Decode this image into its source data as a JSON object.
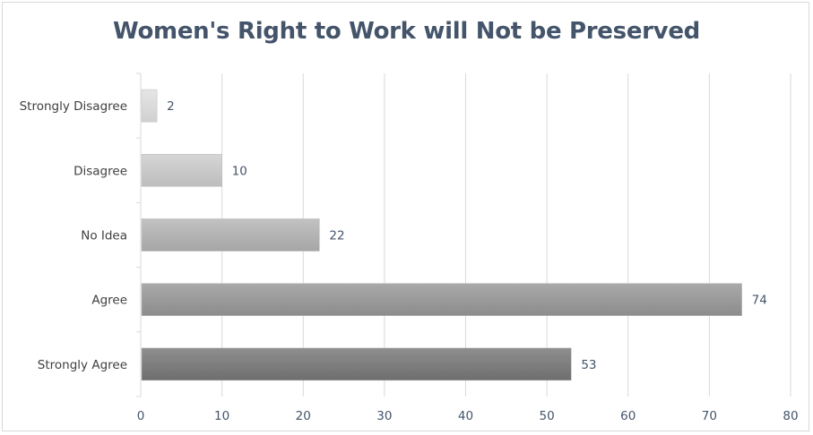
{
  "chart_data": {
    "type": "bar",
    "orientation": "horizontal",
    "title": "Women's Right to Work will Not be Preserved",
    "xlabel": "",
    "ylabel": "",
    "categories": [
      "Strongly Disagree",
      "Disagree",
      "No Idea",
      "Agree",
      "Strongly Agree"
    ],
    "values": [
      2,
      10,
      22,
      74,
      53
    ],
    "xlim": [
      0,
      80
    ],
    "xticks": [
      0,
      10,
      20,
      30,
      40,
      50,
      60,
      70,
      80
    ],
    "grid": "vertical",
    "legend": "none",
    "data_labels": true,
    "bar_colors": [
      "#d0d0d0",
      "#bdbdbd",
      "#a6a6a6",
      "#8c8c8c",
      "#6e6e6e"
    ],
    "bar_colors_light": [
      "#e6e6e6",
      "#d6d6d6",
      "#c2c2c2",
      "#a9a9a9",
      "#8e8e8e"
    ],
    "grid_color": "#d9d9d9",
    "title_color": "#44546a"
  }
}
